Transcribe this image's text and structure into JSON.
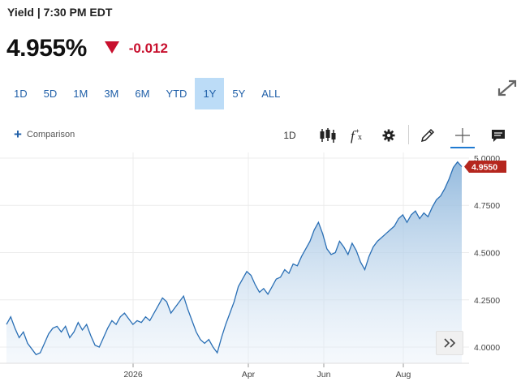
{
  "header": {
    "title": "Yield | 7:30 PM EDT"
  },
  "quote": {
    "value": "4.955%",
    "change": "-0.012",
    "direction_icon": "triangle-down-icon",
    "change_color": "#c8102e"
  },
  "range_tabs": [
    {
      "label": "1D"
    },
    {
      "label": "5D"
    },
    {
      "label": "1M"
    },
    {
      "label": "3M"
    },
    {
      "label": "6M"
    },
    {
      "label": "YTD"
    },
    {
      "label": "1Y",
      "active": true
    },
    {
      "label": "5Y"
    },
    {
      "label": "ALL"
    }
  ],
  "toolbar": {
    "comparison_label": "Comparison",
    "interval_label": "1D",
    "icons": [
      "candlestick-icon",
      "function-icon",
      "gear-icon",
      "pencil-icon",
      "crosshair-icon",
      "comment-icon"
    ]
  },
  "chart_data": {
    "type": "area",
    "x_ticks": [
      "2026",
      "Apr",
      "Jun",
      "Aug"
    ],
    "y_ticks": [
      "5.0000",
      "4.7500",
      "4.5000",
      "4.2500",
      "4.0000"
    ],
    "ylim": [
      3.94,
      5.03
    ],
    "last_value_label": "4.9550",
    "series": [
      {
        "values": [
          4.12,
          4.16,
          4.1,
          4.05,
          4.08,
          4.02,
          3.99,
          3.96,
          3.97,
          4.02,
          4.07,
          4.1,
          4.11,
          4.08,
          4.11,
          4.05,
          4.08,
          4.13,
          4.09,
          4.12,
          4.06,
          4.01,
          4.0,
          4.05,
          4.1,
          4.14,
          4.12,
          4.16,
          4.18,
          4.15,
          4.12,
          4.14,
          4.13,
          4.16,
          4.14,
          4.18,
          4.22,
          4.26,
          4.24,
          4.18,
          4.21,
          4.24,
          4.27,
          4.2,
          4.14,
          4.08,
          4.04,
          4.02,
          4.04,
          4.0,
          3.97,
          4.05,
          4.12,
          4.18,
          4.24,
          4.32,
          4.36,
          4.4,
          4.38,
          4.33,
          4.29,
          4.31,
          4.28,
          4.32,
          4.36,
          4.37,
          4.41,
          4.39,
          4.44,
          4.43,
          4.48,
          4.52,
          4.56,
          4.62,
          4.66,
          4.6,
          4.52,
          4.49,
          4.5,
          4.56,
          4.53,
          4.49,
          4.55,
          4.51,
          4.45,
          4.41,
          4.48,
          4.53,
          4.56,
          4.58,
          4.6,
          4.62,
          4.64,
          4.68,
          4.7,
          4.66,
          4.7,
          4.72,
          4.68,
          4.71,
          4.69,
          4.74,
          4.78,
          4.8,
          4.84,
          4.89,
          4.95,
          4.98,
          4.955
        ]
      }
    ]
  }
}
